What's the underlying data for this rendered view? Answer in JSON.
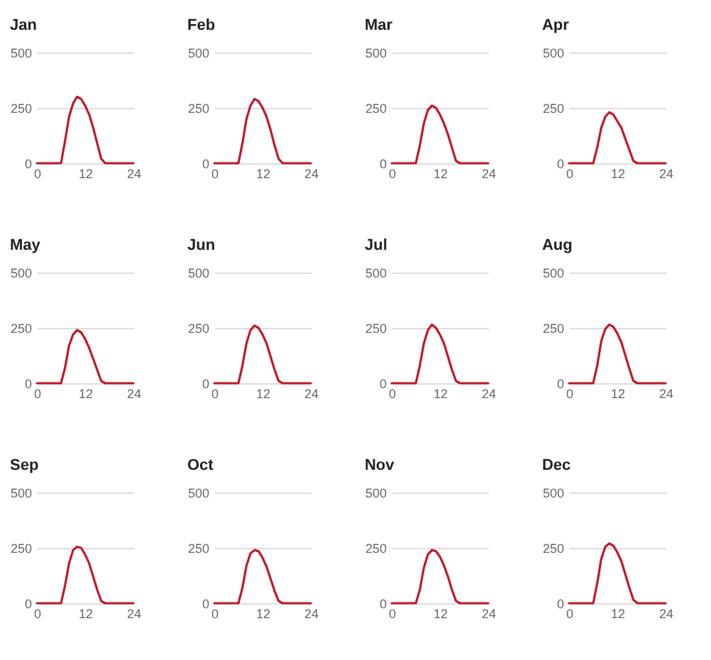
{
  "chart_data": [
    {
      "type": "line",
      "title": "Jan",
      "x": [
        0,
        1,
        2,
        3,
        4,
        5,
        6,
        7,
        8,
        9,
        10,
        11,
        12,
        13,
        14,
        15,
        16,
        17,
        18,
        19,
        20,
        21,
        22,
        23,
        24
      ],
      "values": [
        0,
        0,
        0,
        0,
        0,
        0,
        0,
        100,
        210,
        270,
        300,
        290,
        260,
        220,
        160,
        90,
        20,
        0,
        0,
        0,
        0,
        0,
        0,
        0,
        0
      ],
      "color": "#c0182a",
      "xlim": [
        0,
        24
      ],
      "ylim": [
        0,
        500
      ],
      "xticks": [
        0,
        12,
        24
      ],
      "yticks": [
        0,
        250,
        500
      ],
      "grid": "y"
    },
    {
      "type": "line",
      "title": "Feb",
      "x": [
        0,
        1,
        2,
        3,
        4,
        5,
        6,
        7,
        8,
        9,
        10,
        11,
        12,
        13,
        14,
        15,
        16,
        17,
        18,
        19,
        20,
        21,
        22,
        23,
        24
      ],
      "values": [
        0,
        0,
        0,
        0,
        0,
        0,
        0,
        90,
        200,
        260,
        290,
        280,
        250,
        210,
        150,
        80,
        20,
        0,
        0,
        0,
        0,
        0,
        0,
        0,
        0
      ],
      "color": "#c0182a",
      "xlim": [
        0,
        24
      ],
      "ylim": [
        0,
        500
      ],
      "xticks": [
        0,
        12,
        24
      ],
      "yticks": [
        0,
        250,
        500
      ],
      "grid": "y"
    },
    {
      "type": "line",
      "title": "Mar",
      "x": [
        0,
        1,
        2,
        3,
        4,
        5,
        6,
        7,
        8,
        9,
        10,
        11,
        12,
        13,
        14,
        15,
        16,
        17,
        18,
        19,
        20,
        21,
        22,
        23,
        24
      ],
      "values": [
        0,
        0,
        0,
        0,
        0,
        0,
        0,
        80,
        180,
        240,
        260,
        250,
        220,
        180,
        130,
        70,
        10,
        0,
        0,
        0,
        0,
        0,
        0,
        0,
        0
      ],
      "color": "#c0182a",
      "xlim": [
        0,
        24
      ],
      "ylim": [
        0,
        500
      ],
      "xticks": [
        0,
        12,
        24
      ],
      "yticks": [
        0,
        250,
        500
      ],
      "grid": "y"
    },
    {
      "type": "line",
      "title": "Apr",
      "x": [
        0,
        1,
        2,
        3,
        4,
        5,
        6,
        7,
        8,
        9,
        10,
        11,
        12,
        13,
        14,
        15,
        16,
        17,
        18,
        19,
        20,
        21,
        22,
        23,
        24
      ],
      "values": [
        0,
        0,
        0,
        0,
        0,
        0,
        0,
        70,
        160,
        210,
        230,
        220,
        190,
        160,
        110,
        60,
        10,
        0,
        0,
        0,
        0,
        0,
        0,
        0,
        0
      ],
      "color": "#c0182a",
      "xlim": [
        0,
        24
      ],
      "ylim": [
        0,
        500
      ],
      "xticks": [
        0,
        12,
        24
      ],
      "yticks": [
        0,
        250,
        500
      ],
      "grid": "y"
    },
    {
      "type": "line",
      "title": "May",
      "x": [
        0,
        1,
        2,
        3,
        4,
        5,
        6,
        7,
        8,
        9,
        10,
        11,
        12,
        13,
        14,
        15,
        16,
        17,
        18,
        19,
        20,
        21,
        22,
        23,
        24
      ],
      "values": [
        0,
        0,
        0,
        0,
        0,
        0,
        0,
        70,
        170,
        220,
        240,
        230,
        200,
        160,
        110,
        60,
        10,
        0,
        0,
        0,
        0,
        0,
        0,
        0,
        0
      ],
      "color": "#c0182a",
      "xlim": [
        0,
        24
      ],
      "ylim": [
        0,
        500
      ],
      "xticks": [
        0,
        12,
        24
      ],
      "yticks": [
        0,
        250,
        500
      ],
      "grid": "y"
    },
    {
      "type": "line",
      "title": "Jun",
      "x": [
        0,
        1,
        2,
        3,
        4,
        5,
        6,
        7,
        8,
        9,
        10,
        11,
        12,
        13,
        14,
        15,
        16,
        17,
        18,
        19,
        20,
        21,
        22,
        23,
        24
      ],
      "values": [
        0,
        0,
        0,
        0,
        0,
        0,
        0,
        80,
        180,
        240,
        260,
        250,
        220,
        180,
        120,
        60,
        10,
        0,
        0,
        0,
        0,
        0,
        0,
        0,
        0
      ],
      "color": "#c0182a",
      "xlim": [
        0,
        24
      ],
      "ylim": [
        0,
        500
      ],
      "xticks": [
        0,
        12,
        24
      ],
      "yticks": [
        0,
        250,
        500
      ],
      "grid": "y"
    },
    {
      "type": "line",
      "title": "Jul",
      "x": [
        0,
        1,
        2,
        3,
        4,
        5,
        6,
        7,
        8,
        9,
        10,
        11,
        12,
        13,
        14,
        15,
        16,
        17,
        18,
        19,
        20,
        21,
        22,
        23,
        24
      ],
      "values": [
        0,
        0,
        0,
        0,
        0,
        0,
        0,
        80,
        180,
        240,
        265,
        250,
        220,
        180,
        120,
        60,
        10,
        0,
        0,
        0,
        0,
        0,
        0,
        0,
        0
      ],
      "color": "#c0182a",
      "xlim": [
        0,
        24
      ],
      "ylim": [
        0,
        500
      ],
      "xticks": [
        0,
        12,
        24
      ],
      "yticks": [
        0,
        250,
        500
      ],
      "grid": "y"
    },
    {
      "type": "line",
      "title": "Aug",
      "x": [
        0,
        1,
        2,
        3,
        4,
        5,
        6,
        7,
        8,
        9,
        10,
        11,
        12,
        13,
        14,
        15,
        16,
        17,
        18,
        19,
        20,
        21,
        22,
        23,
        24
      ],
      "values": [
        0,
        0,
        0,
        0,
        0,
        0,
        0,
        80,
        190,
        245,
        265,
        255,
        225,
        185,
        125,
        65,
        10,
        0,
        0,
        0,
        0,
        0,
        0,
        0,
        0
      ],
      "color": "#c0182a",
      "xlim": [
        0,
        24
      ],
      "ylim": [
        0,
        500
      ],
      "xticks": [
        0,
        12,
        24
      ],
      "yticks": [
        0,
        250,
        500
      ],
      "grid": "y"
    },
    {
      "type": "line",
      "title": "Sep",
      "x": [
        0,
        1,
        2,
        3,
        4,
        5,
        6,
        7,
        8,
        9,
        10,
        11,
        12,
        13,
        14,
        15,
        16,
        17,
        18,
        19,
        20,
        21,
        22,
        23,
        24
      ],
      "values": [
        0,
        0,
        0,
        0,
        0,
        0,
        0,
        80,
        180,
        240,
        255,
        250,
        220,
        180,
        120,
        60,
        10,
        0,
        0,
        0,
        0,
        0,
        0,
        0,
        0
      ],
      "color": "#c0182a",
      "xlim": [
        0,
        24
      ],
      "ylim": [
        0,
        500
      ],
      "xticks": [
        0,
        12,
        24
      ],
      "yticks": [
        0,
        250,
        500
      ],
      "grid": "y"
    },
    {
      "type": "line",
      "title": "Oct",
      "x": [
        0,
        1,
        2,
        3,
        4,
        5,
        6,
        7,
        8,
        9,
        10,
        11,
        12,
        13,
        14,
        15,
        16,
        17,
        18,
        19,
        20,
        21,
        22,
        23,
        24
      ],
      "values": [
        0,
        0,
        0,
        0,
        0,
        0,
        0,
        70,
        170,
        225,
        240,
        235,
        205,
        165,
        110,
        55,
        10,
        0,
        0,
        0,
        0,
        0,
        0,
        0,
        0
      ],
      "color": "#c0182a",
      "xlim": [
        0,
        24
      ],
      "ylim": [
        0,
        500
      ],
      "xticks": [
        0,
        12,
        24
      ],
      "yticks": [
        0,
        250,
        500
      ],
      "grid": "y"
    },
    {
      "type": "line",
      "title": "Nov",
      "x": [
        0,
        1,
        2,
        3,
        4,
        5,
        6,
        7,
        8,
        9,
        10,
        11,
        12,
        13,
        14,
        15,
        16,
        17,
        18,
        19,
        20,
        21,
        22,
        23,
        24
      ],
      "values": [
        0,
        0,
        0,
        0,
        0,
        0,
        0,
        60,
        160,
        220,
        240,
        235,
        210,
        170,
        120,
        60,
        10,
        0,
        0,
        0,
        0,
        0,
        0,
        0,
        0
      ],
      "color": "#c0182a",
      "xlim": [
        0,
        24
      ],
      "ylim": [
        0,
        500
      ],
      "xticks": [
        0,
        12,
        24
      ],
      "yticks": [
        0,
        250,
        500
      ],
      "grid": "y"
    },
    {
      "type": "line",
      "title": "Dec",
      "x": [
        0,
        1,
        2,
        3,
        4,
        5,
        6,
        7,
        8,
        9,
        10,
        11,
        12,
        13,
        14,
        15,
        16,
        17,
        18,
        19,
        20,
        21,
        22,
        23,
        24
      ],
      "values": [
        0,
        0,
        0,
        0,
        0,
        0,
        0,
        90,
        200,
        255,
        270,
        260,
        230,
        190,
        130,
        70,
        15,
        0,
        0,
        0,
        0,
        0,
        0,
        0,
        0
      ],
      "color": "#c0182a",
      "xlim": [
        0,
        24
      ],
      "ylim": [
        0,
        500
      ],
      "xticks": [
        0,
        12,
        24
      ],
      "yticks": [
        0,
        250,
        500
      ],
      "grid": "y"
    }
  ]
}
